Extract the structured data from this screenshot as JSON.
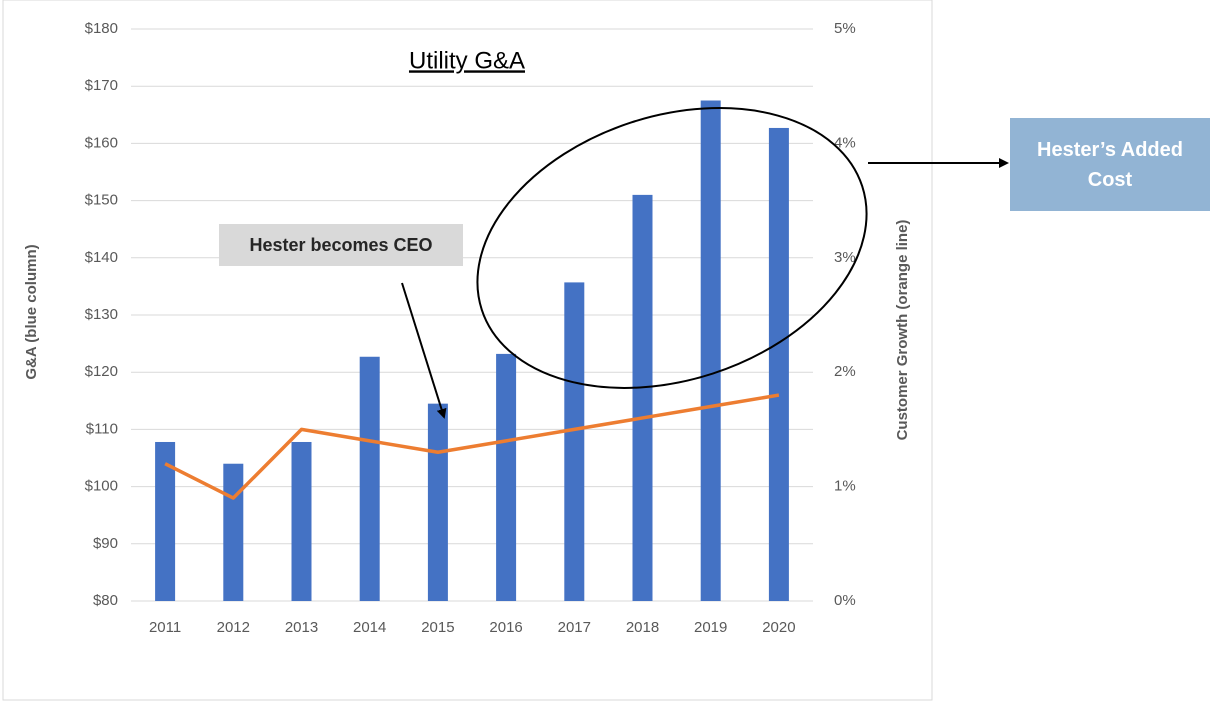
{
  "chart_data": {
    "type": "bar-line",
    "title": "Utility G&A",
    "y_label": "G&A (blue column)",
    "y2_label": "Customer Growth (orange line)",
    "categories": [
      "2011",
      "2012",
      "2013",
      "2014",
      "2015",
      "2016",
      "2017",
      "2018",
      "2019",
      "2020"
    ],
    "series": [
      {
        "type": "bar",
        "color": "#4472c4",
        "values": [
          107.8,
          104,
          107.8,
          122.7,
          114.5,
          123.2,
          135.7,
          151,
          167.5,
          162.7
        ]
      },
      {
        "type": "line",
        "color": "#ed7d31",
        "axis": "y2",
        "values": [
          1.2,
          0.9,
          1.5,
          1.4,
          1.3,
          1.4,
          1.5,
          1.6,
          1.7,
          1.8
        ]
      }
    ],
    "ylim": [
      80,
      180
    ],
    "yticks": [
      {
        "value": 80,
        "label": "$80"
      },
      {
        "value": 90,
        "label": "$90"
      },
      {
        "value": 100,
        "label": "$100"
      },
      {
        "value": 110,
        "label": "$110"
      },
      {
        "value": 120,
        "label": "$120"
      },
      {
        "value": 130,
        "label": "$130"
      },
      {
        "value": 140,
        "label": "$140"
      },
      {
        "value": 150,
        "label": "$150"
      },
      {
        "value": 160,
        "label": "$160"
      },
      {
        "value": 170,
        "label": "$170"
      },
      {
        "value": 180,
        "label": "$180"
      }
    ],
    "y2lim": [
      0,
      5
    ],
    "y2ticks": [
      {
        "value": 0,
        "label": "0%"
      },
      {
        "value": 1,
        "label": "1%"
      },
      {
        "value": 2,
        "label": "2%"
      },
      {
        "value": 3,
        "label": "3%"
      },
      {
        "value": 4,
        "label": "4%"
      },
      {
        "value": 5,
        "label": "5%"
      }
    ],
    "grid": true,
    "annotations": [
      "Hester becomes CEO",
      "Hester’s Added Cost"
    ]
  }
}
